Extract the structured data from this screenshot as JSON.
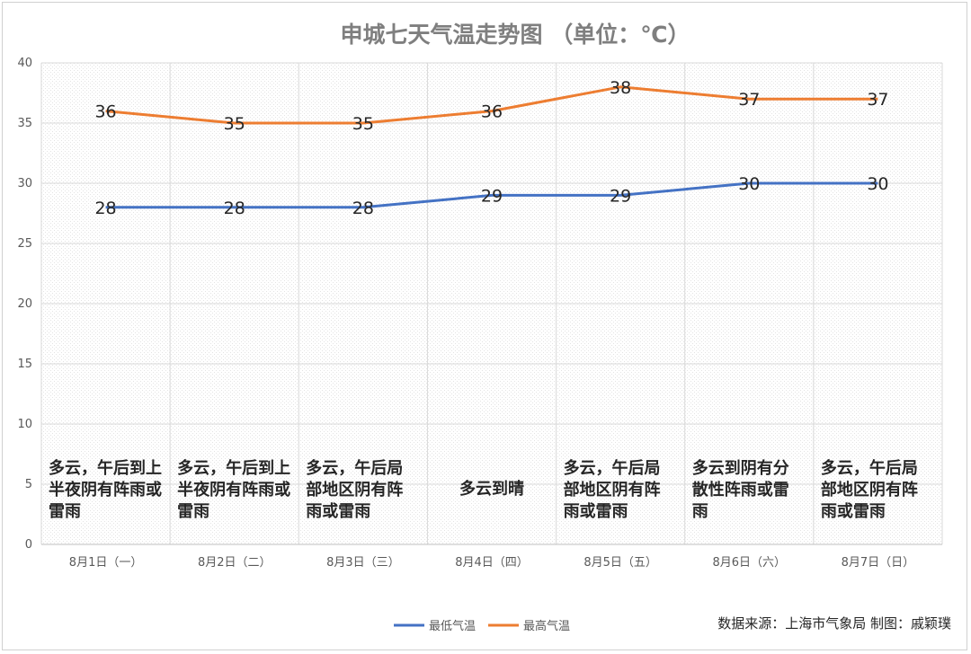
{
  "title": "申城七天气温走势图 （单位：℃）",
  "source": "数据来源：上海市气象局  制图：戚颖璞",
  "colors": {
    "low": "#4472c4",
    "high": "#ed7d31",
    "grid": "#d9d9d9"
  },
  "chart_data": {
    "type": "line",
    "categories": [
      "8月1日（一）",
      "8月2日（二）",
      "8月3日（三）",
      "8月4日（四）",
      "8月5日（五）",
      "8月6日（六）",
      "8月7日（日）"
    ],
    "series": [
      {
        "name": "最低气温",
        "values": [
          28,
          28,
          28,
          29,
          29,
          30,
          30
        ],
        "color": "#4472c4"
      },
      {
        "name": "最高气温",
        "values": [
          36,
          35,
          35,
          36,
          38,
          37,
          37
        ],
        "color": "#ed7d31"
      }
    ],
    "ylim": [
      0,
      40
    ],
    "yticks": [
      0,
      5,
      10,
      15,
      20,
      25,
      30,
      35,
      40
    ],
    "grid": true,
    "legend_position": "bottom",
    "annotations": [
      [
        "多云，午后到上",
        "半夜阴有阵雨或",
        "雷雨"
      ],
      [
        "多云，午后到上",
        "半夜阴有阵雨或",
        "雷雨"
      ],
      [
        "多云，午后局",
        "部地区阴有阵",
        "雨或雷雨"
      ],
      [
        "多云到晴"
      ],
      [
        "多云，午后局",
        "部地区阴有阵",
        "雨或雷雨"
      ],
      [
        "多云到阴有分",
        "散性阵雨或雷",
        "雨"
      ],
      [
        "多云，午后局",
        "部地区阴有阵",
        "雨或雷雨"
      ]
    ]
  }
}
